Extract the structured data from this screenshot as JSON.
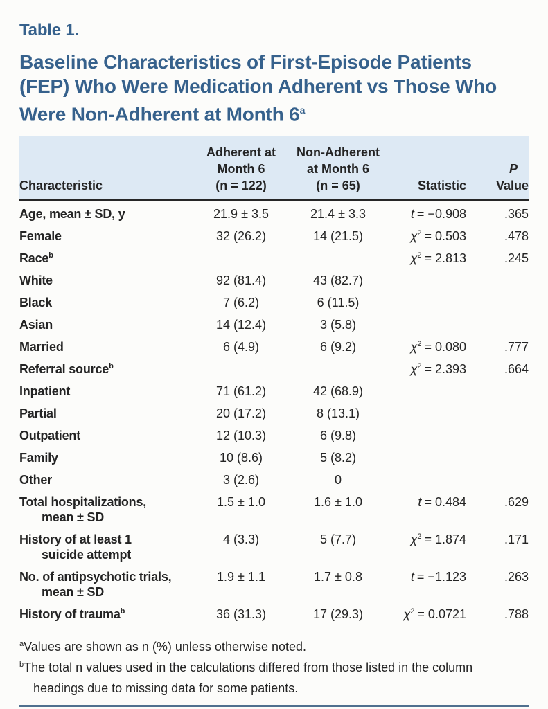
{
  "header": {
    "table_number": "Table 1.",
    "title": "Baseline Characteristics of First-Episode Patients (FEP) Who Were Medication Adherent vs Those Who Were Non-Adherent at Month 6",
    "title_sup": "a"
  },
  "colors": {
    "title_blue": "#36618c",
    "header_bg": "#dde9f4",
    "header_border": "#262626",
    "bottom_rule": "#50708f",
    "text": "#242424"
  },
  "table": {
    "columns": {
      "characteristic": "Characteristic",
      "adherent_l1": "Adherent at",
      "adherent_l2": "Month 6",
      "adherent_l3": "(n = 122)",
      "nonadherent_l1": "Non-Adherent",
      "nonadherent_l2": "at Month 6",
      "nonadherent_l3": "(n = 65)",
      "statistic": "Statistic",
      "p_l1": "P",
      "p_l2": "Value"
    },
    "rows": [
      {
        "label": "Age, mean ± SD, y",
        "adherent": "21.9 ± 3.5",
        "nonadherent": "21.4 ± 3.3",
        "stat_sym": "t",
        "stat_rest": "= −0.908",
        "p": ".365"
      },
      {
        "label": "Female",
        "adherent": "32 (26.2)",
        "nonadherent": "14 (21.5)",
        "stat_sym": "χ",
        "stat_sup": "2",
        "stat_rest": "= 0.503",
        "p": ".478"
      },
      {
        "label": "Race",
        "label_sup": "b",
        "stat_sym": "χ",
        "stat_sup": "2",
        "stat_rest": "= 2.813",
        "p": ".245"
      },
      {
        "label": "White",
        "adherent": "92 (81.4)",
        "nonadherent": "43 (82.7)"
      },
      {
        "label": "Black",
        "adherent": "7 (6.2)",
        "nonadherent": "6 (11.5)"
      },
      {
        "label": "Asian",
        "adherent": "14 (12.4)",
        "nonadherent": "3 (5.8)"
      },
      {
        "label": "Married",
        "adherent": "6 (4.9)",
        "nonadherent": "6 (9.2)",
        "stat_sym": "χ",
        "stat_sup": "2",
        "stat_rest": "= 0.080",
        "p": ".777"
      },
      {
        "label": "Referral source",
        "label_sup": "b",
        "stat_sym": "χ",
        "stat_sup": "2",
        "stat_rest": "= 2.393",
        "p": ".664"
      },
      {
        "label": "Inpatient",
        "adherent": "71 (61.2)",
        "nonadherent": "42 (68.9)"
      },
      {
        "label": "Partial",
        "adherent": "20 (17.2)",
        "nonadherent": "8 (13.1)"
      },
      {
        "label": "Outpatient",
        "adherent": "12 (10.3)",
        "nonadherent": "6 (9.8)"
      },
      {
        "label": "Family",
        "adherent": "10 (8.6)",
        "nonadherent": "5 (8.2)"
      },
      {
        "label": "Other",
        "adherent": "3 (2.6)",
        "nonadherent": "0"
      },
      {
        "label": "Total hospitalizations,",
        "label2": "mean ± SD",
        "adherent": "1.5 ± 1.0",
        "nonadherent": "1.6 ± 1.0",
        "stat_sym": "t",
        "stat_rest": "= 0.484",
        "p": ".629"
      },
      {
        "label": "History of at least 1",
        "label2": "suicide attempt",
        "adherent": "4 (3.3)",
        "nonadherent": "5 (7.7)",
        "stat_sym": "χ",
        "stat_sup": "2",
        "stat_rest": "= 1.874",
        "p": ".171"
      },
      {
        "label": "No. of antipsychotic trials,",
        "label2": "mean ± SD",
        "adherent": "1.9 ± 1.1",
        "nonadherent": "1.7 ± 0.8",
        "stat_sym": "t",
        "stat_rest": "= −1.123",
        "p": ".263"
      },
      {
        "label": "History of trauma",
        "label_sup": "b",
        "adherent": "36 (31.3)",
        "nonadherent": "17 (29.3)",
        "stat_sym": "χ",
        "stat_sup": "2",
        "stat_rest": "= 0.0721",
        "p": ".788"
      }
    ]
  },
  "footnotes": [
    {
      "marker": "a",
      "text": "Values are shown as n (%) unless otherwise noted."
    },
    {
      "marker": "b",
      "text": "The total n values used in the calculations differed from those listed in the column headings due to missing data for some patients."
    }
  ]
}
